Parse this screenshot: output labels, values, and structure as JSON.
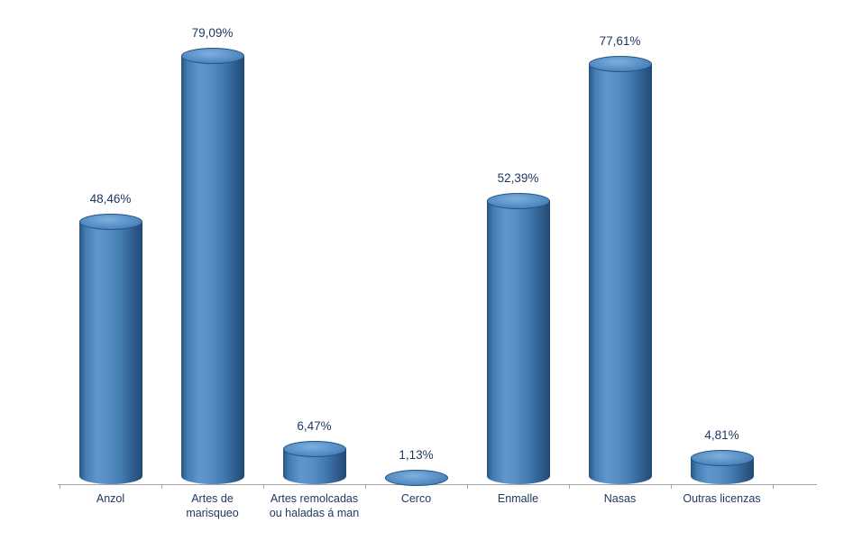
{
  "chart_data": {
    "type": "bar",
    "subtype": "cylinder-3d",
    "title": "",
    "xlabel": "",
    "ylabel": "",
    "categories": [
      "Anzol",
      "Artes de\nmarisqueo",
      "Artes remolcadas\nou haladas á man",
      "Cerco",
      "Enmalle",
      "Nasas",
      "Outras licenzas"
    ],
    "values": [
      48.46,
      79.09,
      6.47,
      1.13,
      52.39,
      77.61,
      4.81
    ],
    "value_labels": [
      "48,46%",
      "79,09%",
      "6,47%",
      "1,13%",
      "52,39%",
      "77,61%",
      "4,81%"
    ],
    "ylim": [
      0,
      85
    ],
    "grid": false,
    "legend": false,
    "y_axis_visible": false,
    "colors": {
      "bar_fill": "#4a86c0",
      "bar_edge_dark": "#24517e",
      "bar_highlight": "#6ca2d6",
      "label_text": "#1f3864",
      "axis_line": "#a6a6a6",
      "background": "#ffffff"
    }
  }
}
